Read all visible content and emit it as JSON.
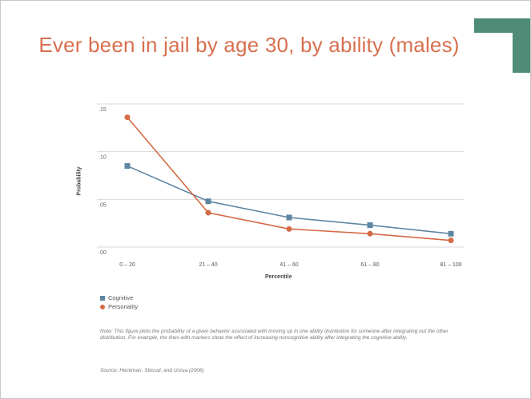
{
  "colors": {
    "title": "#d8704f",
    "cognitive": "#5e86a3",
    "personality": "#d56a45",
    "accent": "#4e8c77"
  },
  "chart_data": {
    "type": "line",
    "title": "Ever been in jail by age 30, by ability (males)",
    "xlabel": "Percentile",
    "ylabel": "Probability",
    "categories": [
      "0 – 20",
      "21 – 40",
      "41 – 60",
      "61 – 80",
      "81 – 100"
    ],
    "yticks": [
      ".00",
      ".05",
      ".10",
      ".15"
    ],
    "ylim": [
      0,
      0.15
    ],
    "grid": true,
    "legend_position": "bottom-left",
    "series": [
      {
        "name": "Cognitive",
        "marker": "square",
        "color": "#5e86a3",
        "values": [
          0.085,
          0.048,
          0.031,
          0.023,
          0.014
        ]
      },
      {
        "name": "Personality",
        "marker": "circle",
        "color": "#d56a45",
        "values": [
          0.136,
          0.036,
          0.019,
          0.014,
          0.007
        ]
      }
    ]
  },
  "note": "Note: This figure plots the probability of a given behavior associated with moving up in one ability distribution for someone after integrating out the other distribution. For example, the lines with markers show the effect of increasing noncognitive ability after integrating the cognitive ability.",
  "source": "Source: Heckman, Stixrud, and Urzua (2006)"
}
